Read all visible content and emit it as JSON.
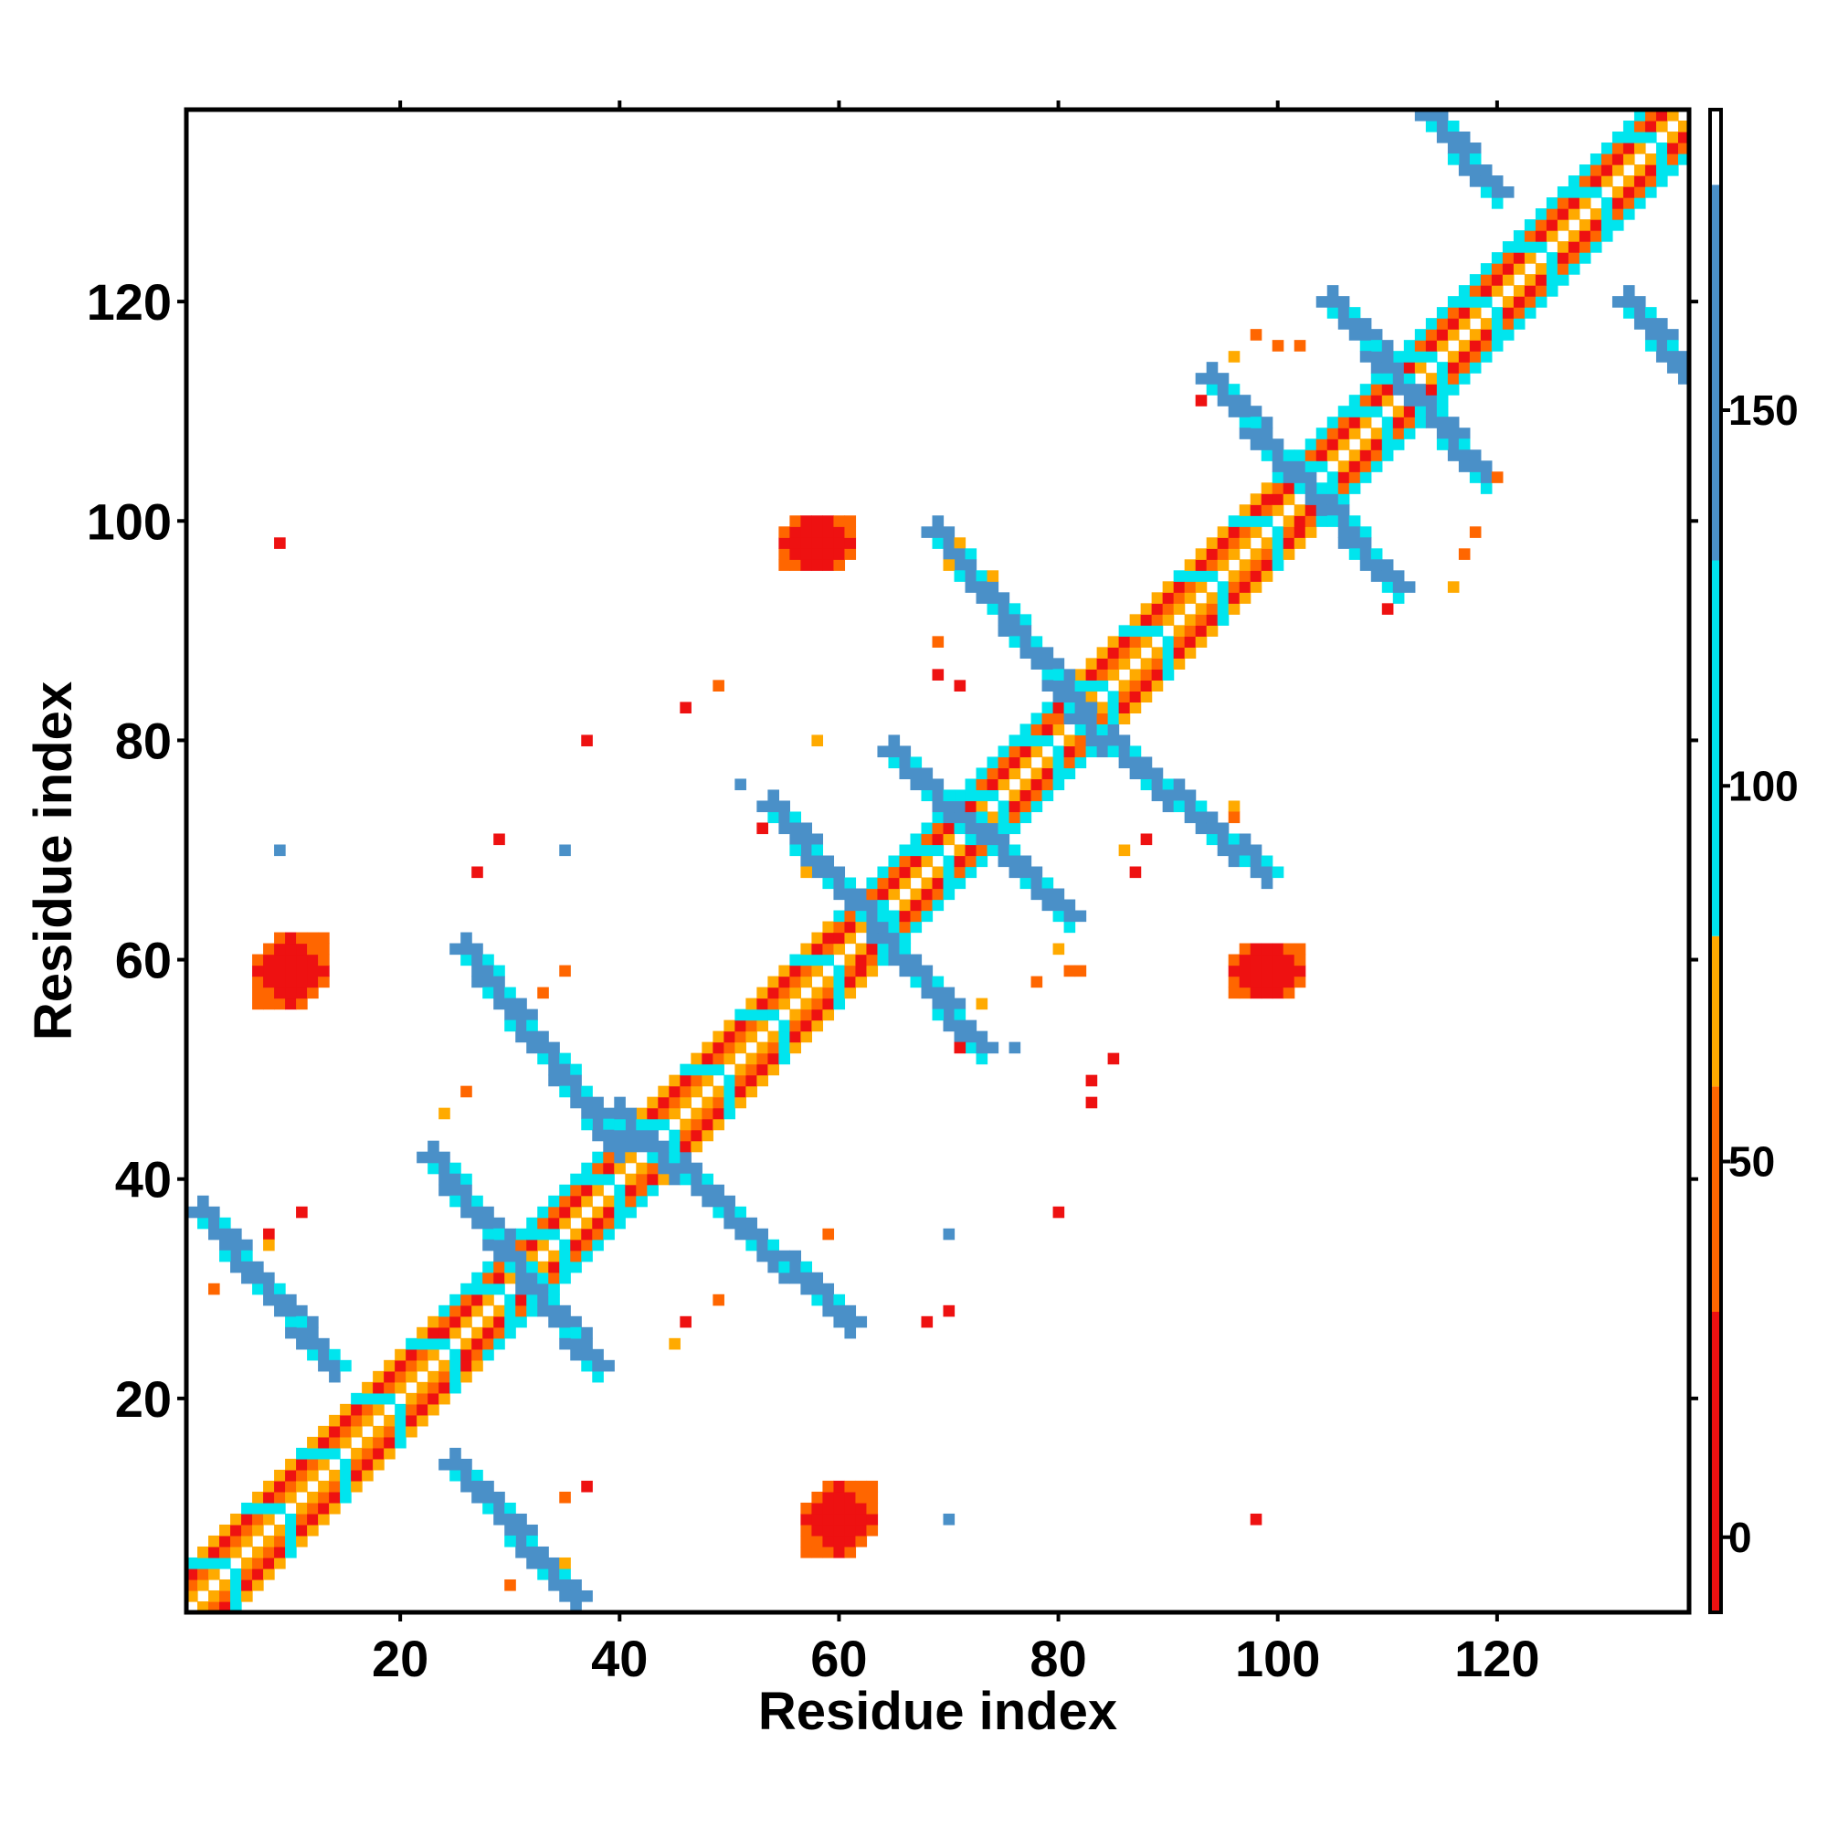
{
  "chart_data": {
    "type": "heatmap",
    "title": "",
    "xlabel": "Residue index",
    "ylabel": "Residue index",
    "xlim": [
      1,
      137
    ],
    "ylim": [
      1,
      137
    ],
    "x_ticks": [
      20,
      40,
      60,
      80,
      100,
      120
    ],
    "y_ticks": [
      20,
      40,
      60,
      80,
      100,
      120
    ],
    "colorbar": {
      "range": [
        -10,
        190
      ],
      "ticks": [
        0,
        50,
        100,
        150
      ],
      "bands": [
        {
          "from": -10,
          "to": 30,
          "color": "#ee1111"
        },
        {
          "from": 30,
          "to": 60,
          "color": "#ff6600"
        },
        {
          "from": 60,
          "to": 80,
          "color": "#ffaa00"
        },
        {
          "from": 80,
          "to": 130,
          "color": "#00e5ee"
        },
        {
          "from": 130,
          "to": 180,
          "color": "#4a90c8"
        },
        {
          "from": 180,
          "to": 190,
          "color": "#ffffff"
        }
      ]
    },
    "grid": false,
    "diagonal_helix_segments": [
      [
        1,
        24,
        "helix"
      ],
      [
        24,
        40,
        "strand"
      ],
      [
        40,
        60,
        "helix"
      ],
      [
        60,
        80,
        "strand"
      ],
      [
        80,
        100,
        "helix"
      ],
      [
        100,
        137,
        "strand"
      ]
    ],
    "band_segments": [
      {
        "x1": 2,
        "y1": 37,
        "x2": 14,
        "y2": 23,
        "value": 150
      },
      {
        "x1": 23,
        "y1": 42,
        "x2": 38,
        "y2": 23,
        "value": 155
      },
      {
        "x1": 26,
        "y1": 61,
        "x2": 40,
        "y2": 43,
        "value": 150
      },
      {
        "x1": 40,
        "y1": 46,
        "x2": 61,
        "y2": 27,
        "value": 150
      },
      {
        "x1": 54,
        "y1": 74,
        "x2": 73,
        "y2": 52,
        "value": 155
      },
      {
        "x1": 65,
        "y1": 79,
        "x2": 81,
        "y2": 64,
        "value": 150
      },
      {
        "x1": 69,
        "y1": 99,
        "x2": 82,
        "y2": 83,
        "value": 150
      },
      {
        "x1": 82,
        "y1": 82,
        "x2": 99,
        "y2": 68,
        "value": 150
      },
      {
        "x1": 94,
        "y1": 113,
        "x2": 111,
        "y2": 94,
        "value": 150
      },
      {
        "x1": 105,
        "y1": 120,
        "x2": 119,
        "y2": 104,
        "value": 150
      },
      {
        "x1": 114,
        "y1": 137,
        "x2": 120,
        "y2": 130,
        "value": 150
      },
      {
        "x1": 132,
        "y1": 120,
        "x2": 137,
        "y2": 114,
        "value": 150
      },
      {
        "x1": 25,
        "y1": 14,
        "x2": 36,
        "y2": 2,
        "value": 150
      }
    ],
    "patches": [
      {
        "cx": 10,
        "cy": 59,
        "rx": 3,
        "ry": 3,
        "value": 10
      },
      {
        "cx": 58,
        "cy": 98,
        "rx": 3,
        "ry": 2,
        "value": 10
      },
      {
        "cx": 60,
        "cy": 9,
        "rx": 3,
        "ry": 3,
        "value": 10
      },
      {
        "cx": 99,
        "cy": 59,
        "rx": 3,
        "ry": 2,
        "value": 10
      }
    ],
    "points": [
      [
        9,
        98,
        10
      ],
      [
        9,
        70,
        150
      ],
      [
        35,
        70,
        150
      ],
      [
        27,
        68,
        10
      ],
      [
        29,
        71,
        10
      ],
      [
        37,
        80,
        10
      ],
      [
        46,
        83,
        10
      ],
      [
        49,
        85,
        40
      ],
      [
        58,
        80,
        70
      ],
      [
        51,
        76,
        150
      ],
      [
        53,
        72,
        10
      ],
      [
        57,
        68,
        70
      ],
      [
        35,
        59,
        40
      ],
      [
        33,
        57,
        40
      ],
      [
        24,
        46,
        70
      ],
      [
        26,
        48,
        40
      ],
      [
        8,
        35,
        10
      ],
      [
        11,
        37,
        10
      ],
      [
        8,
        34,
        70
      ],
      [
        3,
        30,
        40
      ],
      [
        49,
        29,
        40
      ],
      [
        46,
        27,
        10
      ],
      [
        45,
        25,
        70
      ],
      [
        59,
        35,
        40
      ],
      [
        70,
        35,
        150
      ],
      [
        70,
        28,
        10
      ],
      [
        68,
        27,
        10
      ],
      [
        71,
        52,
        10
      ],
      [
        76,
        52,
        150
      ],
      [
        83,
        49,
        10
      ],
      [
        85,
        51,
        10
      ],
      [
        83,
        47,
        10
      ],
      [
        80,
        37,
        10
      ],
      [
        70,
        9,
        150
      ],
      [
        98,
        9,
        10
      ],
      [
        35,
        11,
        40
      ],
      [
        37,
        12,
        10
      ],
      [
        35,
        5,
        70
      ],
      [
        30,
        3,
        40
      ],
      [
        78,
        58,
        40
      ],
      [
        80,
        61,
        70
      ],
      [
        86,
        70,
        70
      ],
      [
        88,
        71,
        10
      ],
      [
        87,
        68,
        10
      ],
      [
        96,
        74,
        70
      ],
      [
        96,
        73,
        40
      ],
      [
        82,
        59,
        40
      ],
      [
        81,
        59,
        40
      ],
      [
        73,
        56,
        70
      ],
      [
        74,
        95,
        70
      ],
      [
        70,
        96,
        70
      ],
      [
        71,
        98,
        70
      ],
      [
        69,
        89,
        40
      ],
      [
        71,
        85,
        10
      ],
      [
        69,
        86,
        10
      ],
      [
        100,
        116,
        40
      ],
      [
        102,
        116,
        40
      ],
      [
        96,
        115,
        70
      ],
      [
        98,
        117,
        40
      ],
      [
        93,
        111,
        10
      ],
      [
        110,
        92,
        10
      ],
      [
        116,
        94,
        70
      ],
      [
        117,
        97,
        40
      ],
      [
        118,
        99,
        40
      ],
      [
        120,
        104,
        40
      ]
    ]
  }
}
